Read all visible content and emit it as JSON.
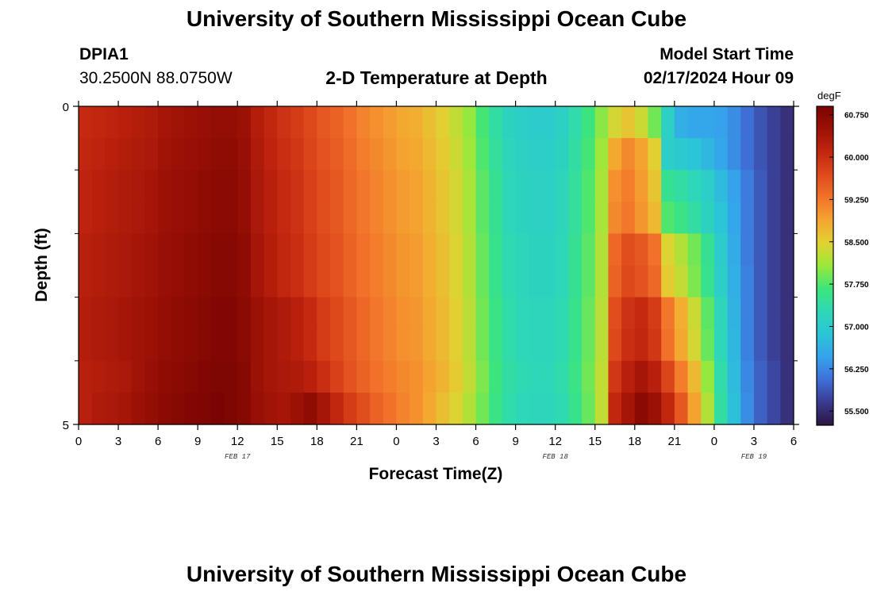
{
  "page": {
    "title": "University of Southern Mississippi Ocean Cube",
    "footer_title": "University of Southern Mississippi Ocean Cube",
    "station_id": "DPIA1",
    "coordinates": "30.2500N  88.0750W",
    "plot_title": "2-D Temperature at Depth",
    "model_start_label": "Model Start Time",
    "model_start_value": "02/17/2024 Hour 09"
  },
  "chart_data": {
    "type": "heatmap",
    "title": "2-D Temperature at Depth",
    "xlabel": "Forecast Time(Z)",
    "ylabel": "Depth (ft)",
    "x_tick_labels": [
      "0",
      "3",
      "6",
      "9",
      "12",
      "15",
      "18",
      "21",
      "0",
      "3",
      "6",
      "9",
      "12",
      "15",
      "18",
      "21",
      "0",
      "3",
      "6"
    ],
    "x_range_hours": [
      0,
      54
    ],
    "date_labels": [
      {
        "label": "FEB 17",
        "hour": 12
      },
      {
        "label": "FEB 18",
        "hour": 36
      },
      {
        "label": "FEB 19",
        "hour": 51
      }
    ],
    "y_tick_labels": [
      "0",
      "5"
    ],
    "y_range": [
      0,
      5
    ],
    "y_minor_ticks": [
      1,
      2,
      3,
      4
    ],
    "colorbar": {
      "unit": "degF",
      "min": 55.25,
      "max": 60.9,
      "tick_values": [
        60.75,
        60.0,
        59.25,
        58.5,
        57.75,
        57.0,
        56.25,
        55.5
      ],
      "tick_labels": [
        "60.750",
        "60.000",
        "59.250",
        "58.500",
        "57.750",
        "57.000",
        "56.250",
        "55.500"
      ],
      "colors": [
        "#2a1540",
        "#3a3a8e",
        "#3f6fd8",
        "#35a3ec",
        "#2cc5d6",
        "#2ed8b6",
        "#3de57a",
        "#9be83a",
        "#e1d232",
        "#f5a530",
        "#f2722a",
        "#df4a1c",
        "#c2260f",
        "#9c1106",
        "#7a0403"
      ]
    },
    "depth_rows": [
      {
        "depth": 0.25,
        "values": [
          60.05,
          60.1,
          60.15,
          60.2,
          60.25,
          60.3,
          60.4,
          60.45,
          60.5,
          60.55,
          60.6,
          60.6,
          60.5,
          60.25,
          60.1,
          59.95,
          59.85,
          59.7,
          59.55,
          59.45,
          59.3,
          59.15,
          59.05,
          58.95,
          58.85,
          58.8,
          58.65,
          58.5,
          58.3,
          58.05,
          57.7,
          57.4,
          57.15,
          57.05,
          57.0,
          57.0,
          57.1,
          57.35,
          57.65,
          58.0,
          58.4,
          58.6,
          58.35,
          57.9,
          57.1,
          56.6,
          56.5,
          56.5,
          56.45,
          56.3,
          56.05,
          55.85,
          55.7,
          55.55
        ]
      },
      {
        "depth": 0.75,
        "values": [
          60.1,
          60.15,
          60.2,
          60.25,
          60.3,
          60.35,
          60.45,
          60.5,
          60.55,
          60.6,
          60.65,
          60.65,
          60.55,
          60.3,
          60.15,
          60.0,
          59.9,
          59.75,
          59.6,
          59.5,
          59.35,
          59.2,
          59.1,
          59.0,
          58.9,
          58.85,
          58.7,
          58.55,
          58.35,
          58.1,
          57.75,
          57.45,
          57.2,
          57.1,
          57.05,
          57.05,
          57.15,
          57.4,
          57.7,
          58.1,
          58.85,
          59.1,
          58.9,
          58.5,
          57.05,
          56.95,
          56.85,
          56.7,
          56.5,
          56.3,
          56.05,
          55.85,
          55.7,
          55.55
        ]
      },
      {
        "depth": 1.25,
        "values": [
          60.15,
          60.2,
          60.25,
          60.3,
          60.35,
          60.4,
          60.5,
          60.55,
          60.6,
          60.65,
          60.7,
          60.7,
          60.6,
          60.35,
          60.2,
          60.05,
          59.95,
          59.8,
          59.65,
          59.55,
          59.4,
          59.25,
          59.15,
          59.05,
          58.95,
          58.9,
          58.75,
          58.6,
          58.4,
          58.15,
          57.8,
          57.5,
          57.25,
          57.15,
          57.1,
          57.1,
          57.2,
          57.45,
          57.75,
          58.15,
          59.05,
          59.2,
          58.95,
          58.6,
          57.5,
          57.4,
          57.25,
          57.05,
          56.75,
          56.45,
          56.15,
          55.9,
          55.7,
          55.55
        ]
      },
      {
        "depth": 1.75,
        "values": [
          60.15,
          60.2,
          60.25,
          60.3,
          60.35,
          60.4,
          60.5,
          60.55,
          60.6,
          60.65,
          60.7,
          60.7,
          60.6,
          60.35,
          60.2,
          60.05,
          59.95,
          59.8,
          59.65,
          59.55,
          59.4,
          59.25,
          59.15,
          59.05,
          58.95,
          58.9,
          58.75,
          58.6,
          58.4,
          58.15,
          57.8,
          57.5,
          57.25,
          57.15,
          57.1,
          57.1,
          57.2,
          57.45,
          57.75,
          58.15,
          59.1,
          59.25,
          59.0,
          58.7,
          57.75,
          57.6,
          57.4,
          57.15,
          56.85,
          56.5,
          56.15,
          55.9,
          55.7,
          55.55
        ]
      },
      {
        "depth": 2.25,
        "values": [
          60.2,
          60.25,
          60.3,
          60.35,
          60.4,
          60.45,
          60.55,
          60.6,
          60.65,
          60.7,
          60.75,
          60.75,
          60.65,
          60.4,
          60.25,
          60.1,
          60.0,
          59.85,
          59.7,
          59.6,
          59.45,
          59.3,
          59.2,
          59.1,
          59.0,
          58.95,
          58.8,
          58.65,
          58.45,
          58.2,
          57.85,
          57.55,
          57.3,
          57.2,
          57.15,
          57.15,
          57.25,
          57.5,
          57.8,
          58.2,
          59.4,
          59.65,
          59.55,
          59.3,
          58.45,
          58.2,
          57.9,
          57.5,
          57.0,
          56.55,
          56.15,
          55.9,
          55.7,
          55.55
        ]
      },
      {
        "depth": 2.75,
        "values": [
          60.2,
          60.25,
          60.3,
          60.35,
          60.4,
          60.45,
          60.55,
          60.6,
          60.65,
          60.7,
          60.75,
          60.75,
          60.65,
          60.4,
          60.25,
          60.1,
          60.0,
          59.85,
          59.7,
          59.6,
          59.45,
          59.3,
          59.2,
          59.1,
          59.0,
          58.95,
          58.8,
          58.65,
          58.45,
          58.2,
          57.85,
          57.55,
          57.3,
          57.2,
          57.15,
          57.15,
          57.25,
          57.5,
          57.8,
          58.2,
          59.45,
          59.7,
          59.6,
          59.4,
          58.55,
          58.3,
          57.95,
          57.55,
          57.05,
          56.6,
          56.2,
          55.9,
          55.7,
          55.55
        ]
      },
      {
        "depth": 3.25,
        "values": [
          60.25,
          60.3,
          60.35,
          60.4,
          60.45,
          60.5,
          60.6,
          60.65,
          60.7,
          60.75,
          60.8,
          60.8,
          60.7,
          60.5,
          60.4,
          60.3,
          60.2,
          60.05,
          59.85,
          59.7,
          59.55,
          59.4,
          59.25,
          59.15,
          59.05,
          59.0,
          58.85,
          58.7,
          58.5,
          58.25,
          57.9,
          57.6,
          57.35,
          57.25,
          57.2,
          57.2,
          57.3,
          57.55,
          57.85,
          58.25,
          59.65,
          59.95,
          60.05,
          59.85,
          59.25,
          58.8,
          58.35,
          57.8,
          57.2,
          56.65,
          56.2,
          55.9,
          55.7,
          55.55
        ]
      },
      {
        "depth": 3.75,
        "values": [
          60.25,
          60.3,
          60.35,
          60.4,
          60.45,
          60.5,
          60.6,
          60.65,
          60.7,
          60.75,
          60.8,
          60.8,
          60.7,
          60.5,
          60.4,
          60.3,
          60.2,
          60.05,
          59.85,
          59.7,
          59.55,
          59.4,
          59.25,
          59.15,
          59.05,
          59.0,
          58.85,
          58.7,
          58.5,
          58.25,
          57.9,
          57.6,
          57.35,
          57.25,
          57.2,
          57.2,
          57.3,
          57.55,
          57.85,
          58.25,
          59.7,
          60.0,
          60.1,
          59.9,
          59.3,
          58.85,
          58.4,
          57.85,
          57.25,
          56.7,
          56.2,
          55.9,
          55.7,
          55.55
        ]
      },
      {
        "depth": 4.25,
        "values": [
          60.2,
          60.25,
          60.3,
          60.35,
          60.45,
          60.55,
          60.65,
          60.7,
          60.75,
          60.8,
          60.85,
          60.85,
          60.75,
          60.5,
          60.4,
          60.35,
          60.3,
          60.2,
          60.0,
          59.8,
          59.6,
          59.45,
          59.3,
          59.2,
          59.1,
          59.05,
          58.9,
          58.75,
          58.55,
          58.3,
          57.95,
          57.65,
          57.4,
          57.3,
          57.25,
          57.25,
          57.35,
          57.6,
          57.9,
          58.3,
          59.9,
          60.2,
          60.4,
          60.2,
          59.75,
          59.2,
          58.7,
          58.05,
          57.35,
          56.75,
          56.25,
          55.95,
          55.75,
          55.55
        ]
      },
      {
        "depth": 4.75,
        "values": [
          60.2,
          60.3,
          60.35,
          60.4,
          60.5,
          60.6,
          60.7,
          60.75,
          60.8,
          60.85,
          60.9,
          60.85,
          60.75,
          60.55,
          60.45,
          60.4,
          60.5,
          60.65,
          60.4,
          60.1,
          59.85,
          59.65,
          59.45,
          59.3,
          59.15,
          59.05,
          58.85,
          58.65,
          58.45,
          58.2,
          57.9,
          57.6,
          57.35,
          57.25,
          57.2,
          57.2,
          57.3,
          57.55,
          57.85,
          58.3,
          60.1,
          60.4,
          60.7,
          60.5,
          60.1,
          59.55,
          58.9,
          58.2,
          57.4,
          56.8,
          56.3,
          55.95,
          55.75,
          55.55
        ]
      }
    ]
  }
}
